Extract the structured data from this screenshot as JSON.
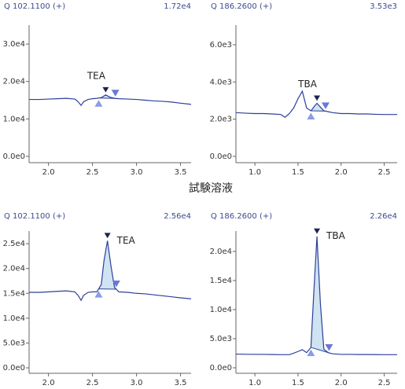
{
  "caption": "試験溶液",
  "chart_data": [
    {
      "type": "line",
      "title": "Q 102.1100 (+)",
      "subtitle": "1.72e4",
      "annotation": "TEA",
      "color": "#2e3f9a",
      "x": [
        1.78,
        1.9,
        2.0,
        2.1,
        2.2,
        2.3,
        2.34,
        2.37,
        2.4,
        2.45,
        2.5,
        2.55,
        2.6,
        2.65,
        2.7,
        2.75,
        2.8,
        2.9,
        3.0,
        3.1,
        3.2,
        3.3,
        3.4,
        3.5,
        3.62
      ],
      "values": [
        15200,
        15200,
        15300,
        15400,
        15500,
        15300,
        14500,
        13600,
        14600,
        15200,
        15400,
        15500,
        15700,
        16400,
        15800,
        15500,
        15400,
        15300,
        15200,
        15000,
        14800,
        14700,
        14500,
        14200,
        13900
      ],
      "peak_range": [
        2.57,
        2.76
      ],
      "xlim": [
        1.78,
        3.62
      ],
      "ylim": [
        -1700,
        33800
      ],
      "xticks": [
        {
          "value": 2,
          "label": "2.0"
        },
        2.5,
        {
          "value": 3,
          "label": "3.0"
        },
        3.5
      ],
      "yticks": [
        {
          "value": 0,
          "label": "0.0e0"
        },
        {
          "value": 10000,
          "label": "1.0e4"
        },
        {
          "value": 20000,
          "label": "2.0e4"
        },
        {
          "value": 30000,
          "label": "3.0e4"
        }
      ]
    },
    {
      "type": "line",
      "title": "Q 186.2600 (+)",
      "subtitle": "3.53e3",
      "annotation": "TBA",
      "color": "#2e3f9a",
      "x": [
        0.78,
        0.9,
        1.0,
        1.1,
        1.2,
        1.3,
        1.35,
        1.4,
        1.45,
        1.5,
        1.55,
        1.6,
        1.65,
        1.7,
        1.72,
        1.75,
        1.8,
        1.85,
        1.9,
        2.0,
        2.1,
        2.2,
        2.3,
        2.4,
        2.5,
        2.65
      ],
      "values": [
        2350,
        2320,
        2300,
        2300,
        2280,
        2250,
        2100,
        2300,
        2600,
        3100,
        3500,
        2600,
        2450,
        2750,
        2850,
        2700,
        2450,
        2400,
        2350,
        2300,
        2300,
        2280,
        2280,
        2260,
        2250,
        2250
      ],
      "peak_range": [
        1.65,
        1.82
      ],
      "xlim": [
        0.78,
        2.65
      ],
      "ylim": [
        -340,
        6800
      ],
      "xticks": [
        {
          "value": 1,
          "label": "1.0"
        },
        1.5,
        {
          "value": 2,
          "label": "2.0"
        },
        2.5
      ],
      "yticks": [
        {
          "value": 0,
          "label": "0.0e0"
        },
        {
          "value": 2000,
          "label": "2.0e3"
        },
        {
          "value": 4000,
          "label": "4.0e3"
        },
        {
          "value": 6000,
          "label": "6.0e3"
        }
      ]
    },
    {
      "type": "line",
      "title": "Q 102.1100 (+)",
      "subtitle": "2.56e4",
      "annotation": "TEA",
      "color": "#2e3f9a",
      "x": [
        1.78,
        1.9,
        2.0,
        2.1,
        2.2,
        2.3,
        2.34,
        2.37,
        2.4,
        2.45,
        2.5,
        2.55,
        2.6,
        2.63,
        2.67,
        2.71,
        2.75,
        2.8,
        2.9,
        3.0,
        3.1,
        3.2,
        3.3,
        3.4,
        3.5,
        3.62
      ],
      "values": [
        15200,
        15200,
        15300,
        15400,
        15500,
        15300,
        14500,
        13600,
        14600,
        15200,
        15300,
        15300,
        16800,
        21500,
        25600,
        20500,
        16200,
        15300,
        15200,
        15000,
        14900,
        14700,
        14500,
        14300,
        14100,
        13900
      ],
      "peak_range": [
        2.57,
        2.77
      ],
      "xlim": [
        1.78,
        3.62
      ],
      "ylim": [
        -1100,
        26600
      ],
      "xticks": [
        {
          "value": 2,
          "label": "2.0"
        },
        2.5,
        {
          "value": 3,
          "label": "3.0"
        },
        3.5
      ],
      "yticks": [
        {
          "value": 0,
          "label": "0.0e0"
        },
        {
          "value": 5000,
          "label": "5.0e3"
        },
        {
          "value": 10000,
          "label": "1.0e4"
        },
        {
          "value": 15000,
          "label": "1.5e4"
        },
        {
          "value": 20000,
          "label": "2.0e4"
        },
        {
          "value": 25000,
          "label": "2.5e4"
        }
      ]
    },
    {
      "type": "line",
      "title": "Q 186.2600 (+)",
      "subtitle": "2.26e4",
      "annotation": "TBA",
      "color": "#2e3f9a",
      "x": [
        0.78,
        0.9,
        1.0,
        1.1,
        1.2,
        1.3,
        1.4,
        1.45,
        1.5,
        1.55,
        1.6,
        1.65,
        1.68,
        1.72,
        1.76,
        1.8,
        1.85,
        1.9,
        2.0,
        2.1,
        2.2,
        2.3,
        2.4,
        2.5,
        2.65
      ],
      "values": [
        2350,
        2320,
        2300,
        2300,
        2280,
        2250,
        2250,
        2500,
        2800,
        3100,
        2600,
        3500,
        12000,
        22600,
        11000,
        3200,
        2600,
        2400,
        2300,
        2300,
        2280,
        2280,
        2260,
        2250,
        2250
      ],
      "peak_range": [
        1.65,
        1.86
      ],
      "xlim": [
        0.78,
        2.65
      ],
      "ylim": [
        -950,
        22700
      ],
      "xticks": [
        {
          "value": 1,
          "label": "1.0"
        },
        1.5,
        {
          "value": 2,
          "label": "2.0"
        },
        2.5
      ],
      "yticks": [
        {
          "value": 0,
          "label": "0.0e0"
        },
        {
          "value": 5000,
          "label": "5.0e3"
        },
        {
          "value": 10000,
          "label": "1.0e4"
        },
        {
          "value": 15000,
          "label": "1.5e4"
        },
        {
          "value": 20000,
          "label": "2.0e4"
        }
      ]
    }
  ]
}
